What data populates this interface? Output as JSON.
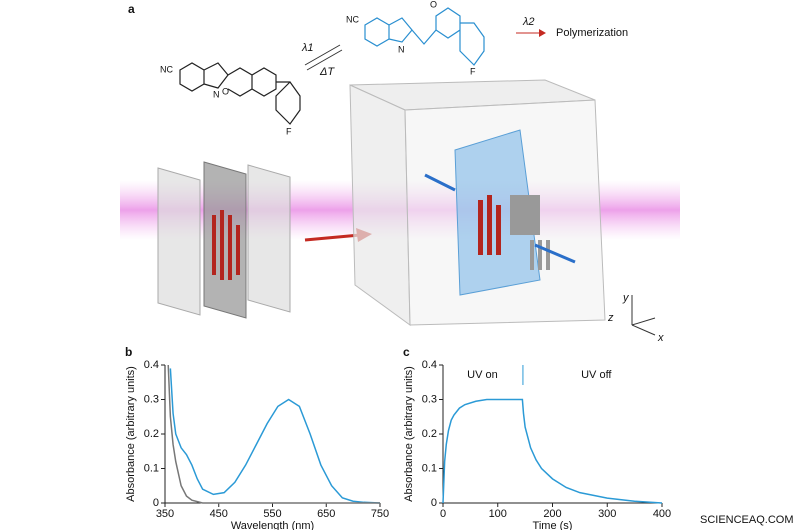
{
  "panel_a": {
    "label": "a",
    "left_nc": "NC",
    "left_n": "N",
    "left_o": "O",
    "left_f": "F",
    "right_nc": "NC",
    "right_n": "N",
    "right_o": "O",
    "right_f": "F",
    "lambda1": "λ1",
    "delta_t": "ΔT",
    "lambda2": "λ2",
    "polymerization": "Polymerization",
    "axis_y": "y",
    "axis_z": "z",
    "axis_x": "x"
  },
  "watermark": "SCIENCEAQ.COM",
  "chart_data": [
    {
      "type": "line",
      "panel": "b",
      "xlabel": "Wavelength (nm)",
      "ylabel": "Absorbance (arbitrary units)",
      "xlim": [
        350,
        750
      ],
      "ylim": [
        0,
        0.4
      ],
      "xticks": [
        350,
        450,
        550,
        650,
        750
      ],
      "yticks": [
        0,
        0.1,
        0.2,
        0.3,
        0.4
      ],
      "series": [
        {
          "color": "#2b9ad6",
          "x": [
            360,
            365,
            370,
            380,
            390,
            400,
            410,
            420,
            440,
            460,
            480,
            500,
            520,
            540,
            560,
            580,
            600,
            620,
            640,
            660,
            680,
            700,
            720,
            750
          ],
          "values": [
            0.39,
            0.26,
            0.2,
            0.16,
            0.14,
            0.11,
            0.07,
            0.04,
            0.025,
            0.03,
            0.06,
            0.11,
            0.17,
            0.23,
            0.28,
            0.3,
            0.28,
            0.2,
            0.11,
            0.05,
            0.015,
            0.005,
            0.002,
            0
          ]
        },
        {
          "color": "#777777",
          "x": [
            356,
            360,
            365,
            370,
            380,
            390,
            400,
            420,
            500,
            750
          ],
          "values": [
            0.4,
            0.25,
            0.17,
            0.12,
            0.05,
            0.02,
            0.008,
            0,
            0,
            0
          ]
        }
      ]
    },
    {
      "type": "line",
      "panel": "c",
      "xlabel": "Time (s)",
      "ylabel": "Absorbance (arbitrary units)",
      "xlim": [
        0,
        400
      ],
      "ylim": [
        0,
        0.4
      ],
      "xticks": [
        0,
        100,
        200,
        300,
        400
      ],
      "yticks": [
        0,
        0.1,
        0.2,
        0.3,
        0.4
      ],
      "annotations": [
        {
          "text": "UV on",
          "x": 72
        },
        {
          "text": "UV off",
          "x": 280
        }
      ],
      "vline": 146,
      "series": [
        {
          "color": "#2b9ad6",
          "x": [
            0,
            3,
            6,
            10,
            15,
            20,
            30,
            40,
            60,
            80,
            100,
            145,
            147,
            150,
            160,
            170,
            180,
            200,
            225,
            250,
            300,
            350,
            400
          ],
          "values": [
            0,
            0.12,
            0.17,
            0.21,
            0.24,
            0.255,
            0.275,
            0.285,
            0.295,
            0.3,
            0.3,
            0.3,
            0.26,
            0.22,
            0.16,
            0.125,
            0.1,
            0.07,
            0.045,
            0.03,
            0.014,
            0.005,
            0
          ]
        }
      ]
    }
  ]
}
